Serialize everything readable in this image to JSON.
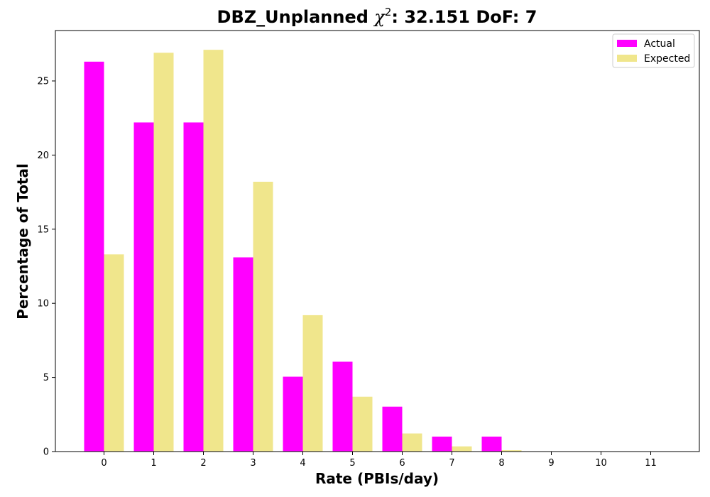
{
  "chart_data": {
    "type": "bar",
    "title_prefix": "DBZ_Unplanned ",
    "title_chi": "χ",
    "title_exp": "2",
    "title_suffix": ": 32.151 DoF: 7",
    "xlabel": "Rate (PBIs/day)",
    "ylabel": "Percentage of Total",
    "categories": [
      0,
      1,
      2,
      3,
      4,
      5,
      6,
      7,
      8,
      9,
      10,
      11
    ],
    "ylim": [
      0,
      28.4
    ],
    "yticks": [
      0,
      5,
      10,
      15,
      20,
      25
    ],
    "legend_position": "top-right",
    "series": [
      {
        "name": "Actual",
        "color": "#ff00ff",
        "values": [
          26.3,
          22.2,
          22.2,
          13.1,
          5.05,
          6.06,
          3.03,
          1.01,
          1.01,
          0,
          0,
          0
        ]
      },
      {
        "name": "Expected",
        "color": "#f0e68c",
        "values": [
          13.3,
          26.9,
          27.1,
          18.2,
          9.2,
          3.7,
          1.22,
          0.35,
          0.09,
          0.02,
          0.0,
          0.0
        ]
      }
    ]
  }
}
